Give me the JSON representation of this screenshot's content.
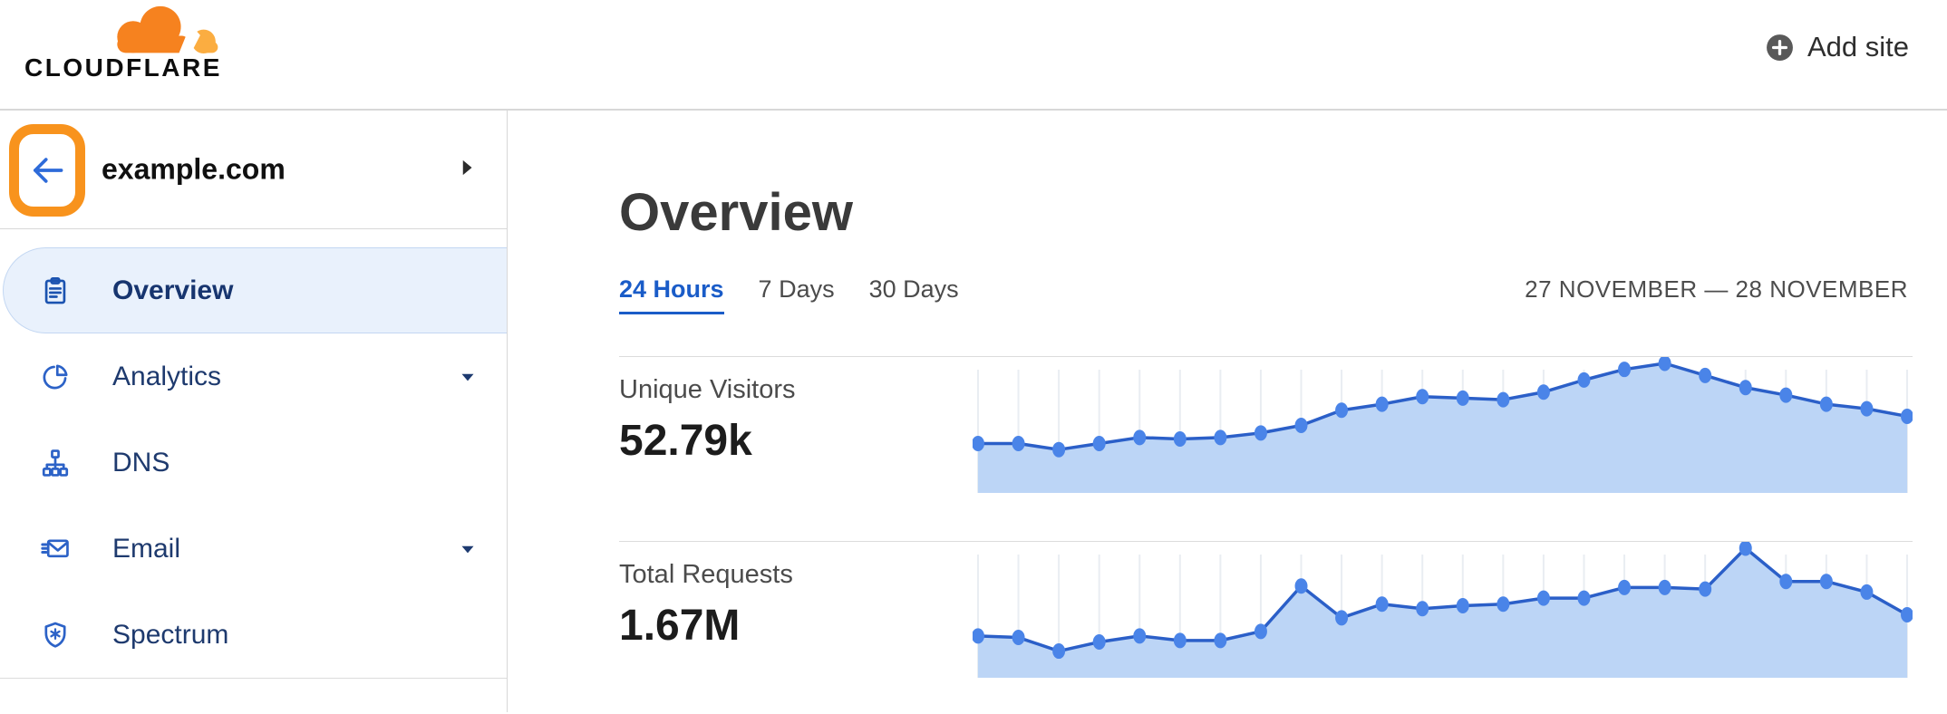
{
  "header": {
    "logo_text": "CLOUDFLARE",
    "add_site_label": "Add site"
  },
  "sidebar": {
    "site": "example.com",
    "items": [
      {
        "label": "Overview",
        "icon": "clipboard-icon",
        "active": true,
        "expandable": false
      },
      {
        "label": "Analytics",
        "icon": "pie-chart-icon",
        "active": false,
        "expandable": true
      },
      {
        "label": "DNS",
        "icon": "hierarchy-icon",
        "active": false,
        "expandable": false
      },
      {
        "label": "Email",
        "icon": "email-icon",
        "active": false,
        "expandable": true
      },
      {
        "label": "Spectrum",
        "icon": "shield-icon",
        "active": false,
        "expandable": false
      }
    ]
  },
  "main": {
    "title": "Overview",
    "tabs": [
      {
        "label": "24 Hours",
        "active": true
      },
      {
        "label": "7 Days",
        "active": false
      },
      {
        "label": "30 Days",
        "active": false
      }
    ],
    "date_range": "27 NOVEMBER — 28 NOVEMBER",
    "stats": [
      {
        "label": "Unique Visitors",
        "value": "52.79k"
      },
      {
        "label": "Total Requests",
        "value": "1.67M"
      }
    ]
  },
  "colors": {
    "brand_orange": "#F6821F",
    "brand_orange_light": "#FBAD41",
    "highlight_orange": "#F8931D",
    "back_arrow_blue": "#2E6BD9",
    "link_blue": "#1A5CC8",
    "nav_icon_blue": "#2C62C7",
    "nav_icon_blue_active": "#1B53B0",
    "nav_text_navy": "#1E3A6E",
    "active_item_bg": "#E9F1FC",
    "active_item_border": "#C3D7F2",
    "chart_fill": "#BCD5F6",
    "chart_line": "#2B5FC8",
    "chart_dot": "#4A84E8",
    "gridline": "#E9EDF2",
    "divider": "#DCDCDC",
    "heading_gray": "#3A3A3A",
    "text_gray": "#4B4B4B"
  },
  "chart_data": [
    {
      "type": "area",
      "title": "Unique Visitors",
      "total": "52.79k",
      "series_name": "Unique Visitors (24 Hours)",
      "x_description": "24 hourly intervals, 27 November — 28 November (no tick labels shown)",
      "x_labels_visible": false,
      "y_axis_visible": false,
      "ylim": [
        0,
        100
      ],
      "grid": "vertical line at each point",
      "legend": "none",
      "values_relative": [
        47,
        47,
        43,
        47,
        51,
        50,
        51,
        54,
        59,
        69,
        73,
        78,
        77,
        76,
        81,
        89,
        96,
        100,
        92,
        84,
        79,
        73,
        70,
        65
      ]
    },
    {
      "type": "area",
      "title": "Total Requests",
      "total": "1.67M",
      "series_name": "Total Requests (24 Hours)",
      "x_description": "24 hourly intervals, 27 November — 28 November (no tick labels shown)",
      "x_labels_visible": false,
      "y_axis_visible": false,
      "ylim": [
        0,
        100
      ],
      "grid": "vertical line at each point",
      "legend": "none",
      "values_relative": [
        42,
        41,
        32,
        38,
        42,
        39,
        39,
        45,
        75,
        54,
        63,
        60,
        62,
        63,
        67,
        67,
        74,
        74,
        73,
        100,
        78,
        78,
        71,
        56
      ]
    }
  ]
}
